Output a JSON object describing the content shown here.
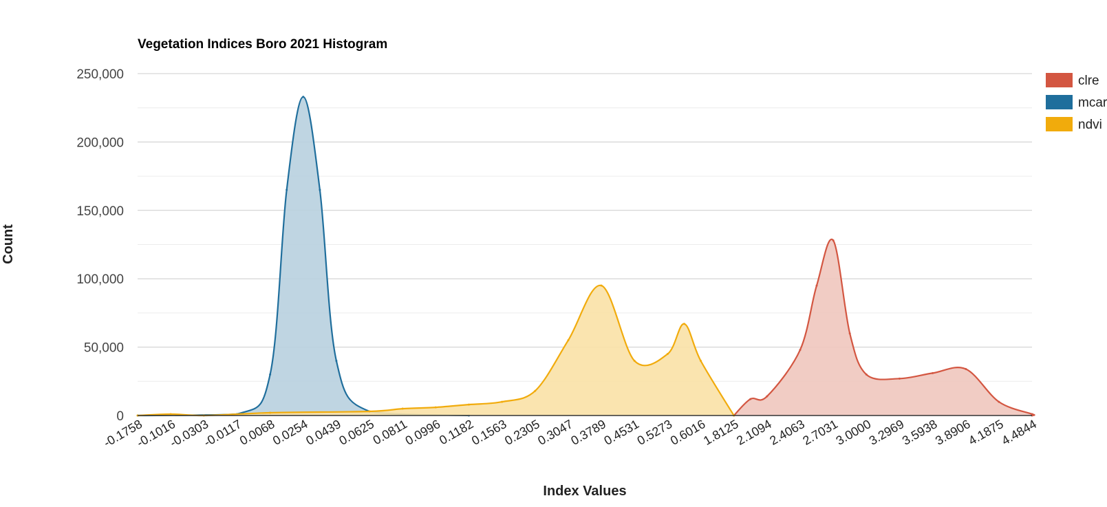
{
  "chart_data": {
    "type": "area",
    "title": "Vegetation Indices Boro 2021 Histogram",
    "xlabel": "Index Values",
    "ylabel": "Count",
    "ylim": [
      0,
      250000
    ],
    "yticks": [
      "0",
      "50,000",
      "100,000",
      "150,000",
      "200,000",
      "250,000"
    ],
    "grid": true,
    "legend": "right",
    "x_tick_labels": [
      "-0.1758",
      "-0.1016",
      "-0.0303",
      "-0.0117",
      "0.0068",
      "0.0254",
      "0.0439",
      "0.0625",
      "0.0811",
      "0.0996",
      "0.1182",
      "0.1563",
      "0.2305",
      "0.3047",
      "0.3789",
      "0.4531",
      "0.5273",
      "0.6016",
      "1.8125",
      "2.1094",
      "2.4063",
      "2.7031",
      "3.0000",
      "3.2969",
      "3.5938",
      "3.8906",
      "4.1875",
      "4.4844"
    ],
    "series": [
      {
        "name": "clre",
        "color": "#d35641",
        "values": [
          [
            "1.8125",
            0
          ],
          [
            "1.9609",
            12000
          ],
          [
            "2.1094",
            14000
          ],
          [
            "2.4063",
            48000
          ],
          [
            "2.5547",
            95000
          ],
          [
            "2.7031",
            128000
          ],
          [
            "2.8516",
            60000
          ],
          [
            "3.0000",
            30000
          ],
          [
            "3.2969",
            27000
          ],
          [
            "3.5938",
            31000
          ],
          [
            "3.8906",
            34000
          ],
          [
            "4.1875",
            10000
          ],
          [
            "4.4844",
            1000
          ],
          [
            "4.6328",
            0
          ]
        ]
      },
      {
        "name": "mcari",
        "color": "#1f6e9c",
        "values": [
          [
            "-0.1758",
            0
          ],
          [
            "-0.0117",
            1000
          ],
          [
            "0.0068",
            30000
          ],
          [
            "0.0161",
            165000
          ],
          [
            "0.0254",
            233000
          ],
          [
            "0.0347",
            165000
          ],
          [
            "0.0439",
            40000
          ],
          [
            "0.0625",
            3000
          ],
          [
            "0.1182",
            0
          ]
        ]
      },
      {
        "name": "ndvi",
        "color": "#f1ab0c",
        "values": [
          [
            "-0.1758",
            0
          ],
          [
            "-0.1016",
            1000
          ],
          [
            "-0.0303",
            0
          ],
          [
            "0.0068",
            2000
          ],
          [
            "0.0625",
            3000
          ],
          [
            "0.0811",
            5000
          ],
          [
            "0.0996",
            6000
          ],
          [
            "0.1182",
            8000
          ],
          [
            "0.1563",
            10000
          ],
          [
            "0.2305",
            18000
          ],
          [
            "0.3047",
            55000
          ],
          [
            "0.3789",
            95000
          ],
          [
            "0.4531",
            40000
          ],
          [
            "0.5273",
            45000
          ],
          [
            "0.5645",
            67000
          ],
          [
            "0.6016",
            40000
          ],
          [
            "1.8125",
            0
          ]
        ]
      }
    ]
  }
}
